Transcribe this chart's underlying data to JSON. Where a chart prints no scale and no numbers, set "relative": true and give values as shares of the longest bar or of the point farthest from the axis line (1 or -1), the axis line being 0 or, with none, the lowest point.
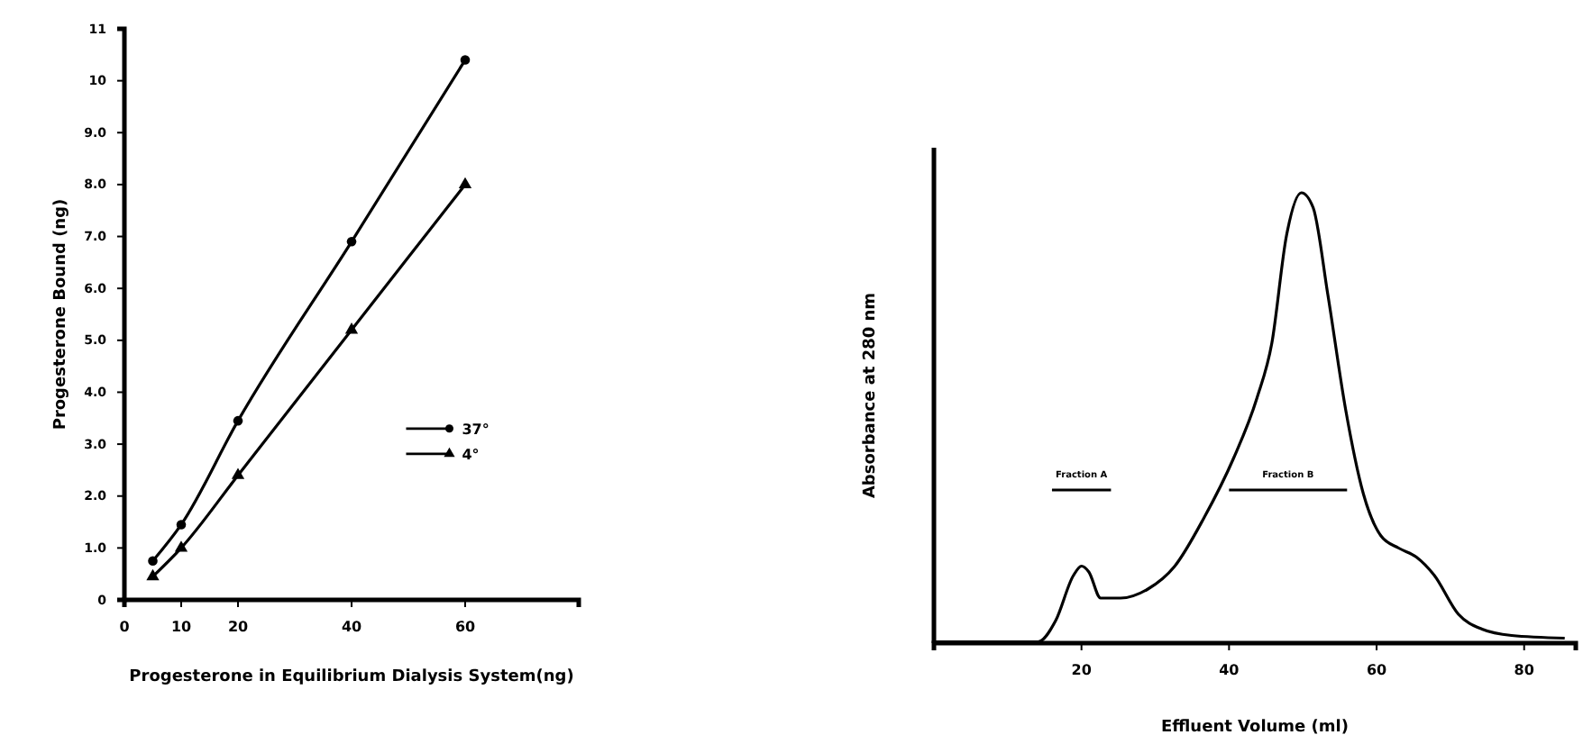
{
  "chart_data": [
    {
      "type": "line",
      "xlabel": "Progesterone in Equilibrium Dialysis System(ng)",
      "ylabel": "Progesterone Bound (ng)",
      "xlim": [
        0,
        80
      ],
      "xticks": [
        0,
        10,
        20,
        40,
        60
      ],
      "ylim": [
        0,
        11
      ],
      "yticks": [
        0,
        {
          "value": 1,
          "label": "1.0"
        },
        {
          "value": 2,
          "label": "2.0"
        },
        {
          "value": 3,
          "label": "3.0"
        },
        {
          "value": 4,
          "label": "4.0"
        },
        {
          "value": 5,
          "label": "5.0"
        },
        {
          "value": 6,
          "label": "6.0"
        },
        {
          "value": 7,
          "label": "7.0"
        },
        {
          "value": 8,
          "label": "8.0"
        },
        {
          "value": 9,
          "label": "9.0"
        },
        10,
        11
      ],
      "legend": "right",
      "series": [
        {
          "name": "37°",
          "color": "#000000",
          "marker": "circle",
          "x": [
            5,
            10,
            20,
            40,
            60
          ],
          "values": [
            0.75,
            1.45,
            3.45,
            6.9,
            10.4
          ]
        },
        {
          "name": "4°",
          "color": "#000000",
          "marker": "triangle",
          "x": [
            5,
            10,
            20,
            40,
            60
          ],
          "values": [
            0.45,
            1.0,
            2.4,
            5.2,
            8.0
          ]
        }
      ]
    },
    {
      "type": "line",
      "xlabel": "Effluent Volume (ml)",
      "ylabel": "Absorbance at 280 nm",
      "relative": true,
      "xlim": [
        0,
        87
      ],
      "xticks": [
        20,
        40,
        60,
        80
      ],
      "annotations": [
        {
          "text": "Fraction A",
          "x": 20,
          "y": 0.34
        },
        {
          "text": "Fraction B",
          "x": 48,
          "y": 0.34
        }
      ],
      "series": [
        {
          "color": "#000000",
          "x": [
            0,
            14.1,
            16.5,
            18.9,
            20,
            21,
            22.6,
            25.3,
            29,
            32.6,
            36.6,
            40.6,
            43.8,
            45.8,
            47.8,
            49.8,
            51.4,
            53.4,
            55.8,
            58.2,
            60.6,
            63,
            65.4,
            67.8,
            71.1,
            74.3,
            78.3,
            85.5
          ],
          "values": [
            0.003,
            0.003,
            0.05,
            0.15,
            0.171,
            0.158,
            0.1,
            0.1,
            0.12,
            0.17,
            0.278,
            0.41,
            0.545,
            0.666,
            0.906,
            1.0,
            0.967,
            0.773,
            0.519,
            0.332,
            0.238,
            0.211,
            0.191,
            0.151,
            0.064,
            0.031,
            0.017,
            0.011
          ]
        },
        {
          "color": "#000000",
          "x": [
            16,
            24
          ],
          "values": [
            0.34,
            0.34
          ]
        },
        {
          "color": "#000000",
          "x": [
            40,
            56
          ],
          "values": [
            0.34,
            0.34
          ]
        }
      ]
    }
  ]
}
